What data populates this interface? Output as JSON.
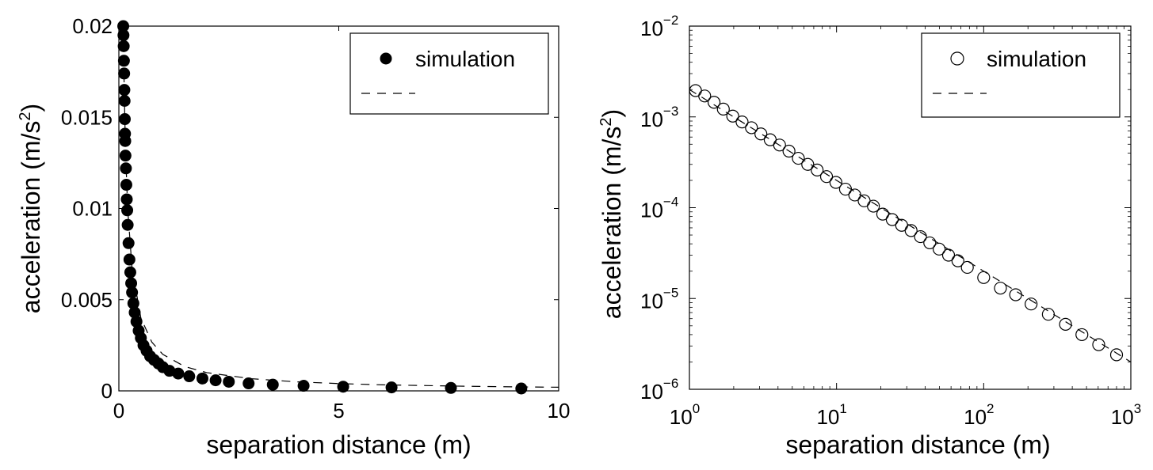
{
  "chart_data": [
    {
      "type": "scatter",
      "xlabel": "separation distance (m)",
      "ylabel": "acceleration (m/s²)",
      "ylabel_base": "acceleration (m/s",
      "ylabel_sup": "2",
      "ylabel_close": ")",
      "xlim": [
        0,
        10
      ],
      "ylim": [
        0,
        0.02
      ],
      "xticks": [
        0,
        5,
        10
      ],
      "xtick_labels": [
        "0",
        "5",
        "10"
      ],
      "yticks": [
        0,
        0.005,
        0.01,
        0.015,
        0.02
      ],
      "ytick_labels": [
        "0",
        "0.005",
        "0.01",
        "0.015",
        "0.02"
      ],
      "grid": false,
      "legend_position": "top-right",
      "series": [
        {
          "name": "simulation",
          "style": "filled-circle",
          "x": [
            0.1,
            0.105,
            0.11,
            0.115,
            0.12,
            0.125,
            0.13,
            0.135,
            0.14,
            0.145,
            0.15,
            0.16,
            0.17,
            0.18,
            0.19,
            0.2,
            0.22,
            0.24,
            0.26,
            0.28,
            0.3,
            0.33,
            0.36,
            0.4,
            0.45,
            0.5,
            0.56,
            0.63,
            0.71,
            0.8,
            0.9,
            1.0,
            1.15,
            1.35,
            1.6,
            1.9,
            2.2,
            2.5,
            2.95,
            3.5,
            4.2,
            5.1,
            6.2,
            7.55,
            9.15
          ],
          "y": [
            0.02,
            0.0195,
            0.0189,
            0.0181,
            0.0174,
            0.0165,
            0.0159,
            0.0149,
            0.0141,
            0.0137,
            0.0129,
            0.0122,
            0.0113,
            0.0105,
            0.0099,
            0.0091,
            0.0081,
            0.0072,
            0.0065,
            0.0059,
            0.0054,
            0.0048,
            0.0043,
            0.0038,
            0.0033,
            0.0029,
            0.0025,
            0.0022,
            0.0019,
            0.0017,
            0.0015,
            0.0013,
            0.0011,
            0.00095,
            0.0008,
            0.00068,
            0.00058,
            0.0005,
            0.00041,
            0.00034,
            0.00028,
            0.00023,
            0.00019,
            0.00016,
            0.00013
          ]
        },
        {
          "name": "",
          "style": "dashed-line",
          "x": [
            0.1,
            0.12,
            0.15,
            0.2,
            0.3,
            0.5,
            0.75,
            1,
            1.5,
            2,
            3,
            4,
            5,
            6,
            7,
            8,
            9,
            10
          ],
          "y": [
            0.02,
            0.0167,
            0.0133,
            0.01,
            0.0067,
            0.004,
            0.00267,
            0.002,
            0.00133,
            0.001,
            0.00067,
            0.0005,
            0.0004,
            0.00033,
            0.00029,
            0.00025,
            0.00022,
            0.0002
          ]
        }
      ]
    },
    {
      "type": "scatter",
      "xscale": "log",
      "yscale": "log",
      "xlabel": "separation distance (m)",
      "ylabel": "acceleration (m/s²)",
      "ylabel_base": "acceleration (m/s",
      "ylabel_sup": "2",
      "ylabel_close": ")",
      "xlim": [
        1,
        1000
      ],
      "ylim": [
        1e-06,
        0.01
      ],
      "xtick_labels": [
        {
          "base": "10",
          "exp": "0"
        },
        {
          "base": "10",
          "exp": "1"
        },
        {
          "base": "10",
          "exp": "2"
        },
        {
          "base": "10",
          "exp": "3"
        }
      ],
      "ytick_labels": [
        {
          "base": "10",
          "exp": "−6"
        },
        {
          "base": "10",
          "exp": "−5"
        },
        {
          "base": "10",
          "exp": "−4"
        },
        {
          "base": "10",
          "exp": "−3"
        },
        {
          "base": "10",
          "exp": "−2"
        }
      ],
      "grid": false,
      "legend_position": "top-right",
      "series": [
        {
          "name": "simulation",
          "style": "open-circle",
          "x": [
            1.1,
            1.27,
            1.47,
            1.7,
            1.97,
            2.28,
            2.64,
            3.06,
            3.54,
            4.1,
            4.75,
            5.5,
            6.37,
            7.38,
            8.55,
            9.9,
            11.5,
            13.3,
            15.4,
            17.8,
            20.6,
            23.9,
            27.7,
            32.1,
            37.2,
            43.0,
            49.8,
            57.7,
            66.8,
            77.4,
            100,
            130,
            165,
            210,
            275,
            360,
            465,
            605,
            800
          ],
          "y": [
            0.00195,
            0.0017,
            0.00145,
            0.00122,
            0.00102,
            0.00088,
            0.00076,
            0.00065,
            0.00056,
            0.00049,
            0.00042,
            0.00035,
            0.0003,
            0.00026,
            0.00022,
            0.00019,
            0.00016,
            0.000138,
            0.000119,
            0.000104,
            8.5e-05,
            7.4e-05,
            6.4e-05,
            5.6e-05,
            4.8e-05,
            4.1e-05,
            3.5e-05,
            3e-05,
            2.6e-05,
            2.2e-05,
            1.7e-05,
            1.3e-05,
            1.1e-05,
            8.7e-06,
            6.7e-06,
            5.2e-06,
            4e-06,
            3.1e-06,
            2.4e-06
          ]
        },
        {
          "name": "",
          "style": "dashed-line",
          "x": [
            1,
            1000
          ],
          "y": [
            0.002,
            2e-06
          ]
        }
      ]
    }
  ]
}
